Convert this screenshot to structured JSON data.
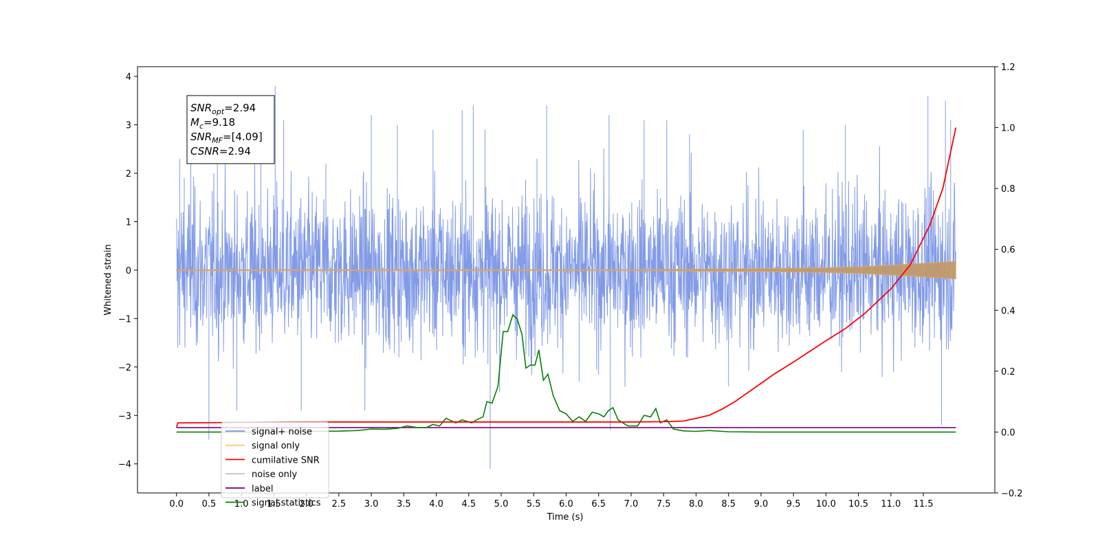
{
  "chart_data": {
    "type": "line",
    "title": "",
    "xlabel": "Time (s)",
    "ylabel": "Whitened strain",
    "xlim": [
      -0.6,
      12.6
    ],
    "ylim": [
      -4.6,
      4.2
    ],
    "y2lim": [
      -0.2,
      1.2
    ],
    "x_ticks": [
      "0.0",
      "0.5",
      "1.0",
      "1.5",
      "2.0",
      "2.5",
      "3.0",
      "3.5",
      "4.0",
      "4.5",
      "5.0",
      "5.5",
      "6.0",
      "6.5",
      "7.0",
      "7.5",
      "8.0",
      "8.5",
      "9.0",
      "9.5",
      "10.0",
      "10.5",
      "11.0",
      "11.5"
    ],
    "y_ticks": [
      "4",
      "3",
      "2",
      "1",
      "0",
      "−1",
      "−2",
      "−3",
      "−4"
    ],
    "y2_ticks": [
      "1.2",
      "1.0",
      "0.8",
      "0.6",
      "0.4",
      "0.2",
      "0.0",
      "−0.2"
    ],
    "grid": false,
    "legend_position": "lower-left",
    "info_box": {
      "lines": [
        {
          "main": "SNR",
          "sub": "opt",
          "rest": "=2.94"
        },
        {
          "main": "M",
          "sub": "c",
          "rest": "=9.18"
        },
        {
          "main": "SNR",
          "sub": "MF",
          "rest": "=[4.09]"
        },
        {
          "main": "CSNR",
          "sub": "",
          "rest": "=2.94"
        }
      ]
    },
    "series": [
      {
        "name": "signal+ noise",
        "color": "#7b96e6",
        "axis": "left",
        "description_values": {
          "x_range": [
            0.0,
            12.0
          ],
          "baseline": 0.0,
          "typical_amplitude": 1.5
        },
        "spikes": [
          [
            0.02,
            -1.6
          ],
          [
            0.05,
            2.3
          ],
          [
            0.12,
            1.9
          ],
          [
            0.22,
            2.4
          ],
          [
            0.5,
            -3.5
          ],
          [
            0.63,
            2.2
          ],
          [
            0.93,
            -2.9
          ],
          [
            1.3,
            2.7
          ],
          [
            1.52,
            3.8
          ],
          [
            1.65,
            3.1
          ],
          [
            1.92,
            -2.9
          ],
          [
            2.3,
            2.2
          ],
          [
            2.9,
            -2.9
          ],
          [
            3.0,
            3.2
          ],
          [
            3.4,
            3.0
          ],
          [
            3.95,
            2.9
          ],
          [
            4.4,
            3.3
          ],
          [
            4.57,
            3.4
          ],
          [
            4.75,
            2.9
          ],
          [
            4.83,
            -4.1
          ],
          [
            5.55,
            2.3
          ],
          [
            5.7,
            3.4
          ],
          [
            6.2,
            -2.3
          ],
          [
            6.66,
            3.2
          ],
          [
            6.68,
            -3.3
          ],
          [
            7.2,
            3.1
          ],
          [
            7.55,
            3.1
          ],
          [
            7.9,
            2.8
          ],
          [
            8.5,
            -2.4
          ],
          [
            9.65,
            2.9
          ],
          [
            10.3,
            3.0
          ],
          [
            11.57,
            3.6
          ],
          [
            11.78,
            -3.2
          ],
          [
            11.84,
            3.5
          ],
          [
            11.92,
            3.1
          ]
        ]
      },
      {
        "name": "signal only",
        "color": "#ffc966",
        "axis": "left",
        "envelope": [
          [
            0.0,
            0.01
          ],
          [
            7.0,
            0.01
          ],
          [
            8.0,
            0.02
          ],
          [
            9.0,
            0.03
          ],
          [
            10.0,
            0.05
          ],
          [
            10.5,
            0.07
          ],
          [
            11.0,
            0.1
          ],
          [
            11.5,
            0.14
          ],
          [
            12.0,
            0.18
          ]
        ]
      },
      {
        "name": "cumilative SNR",
        "color": "#ff0000",
        "axis": "right",
        "points": [
          [
            0.0,
            0.015
          ],
          [
            0.02,
            0.03
          ],
          [
            2.0,
            0.033
          ],
          [
            4.0,
            0.033
          ],
          [
            6.0,
            0.033
          ],
          [
            7.0,
            0.033
          ],
          [
            7.5,
            0.034
          ],
          [
            7.8,
            0.036
          ],
          [
            8.0,
            0.045
          ],
          [
            8.2,
            0.055
          ],
          [
            8.4,
            0.075
          ],
          [
            8.6,
            0.1
          ],
          [
            8.8,
            0.13
          ],
          [
            9.0,
            0.16
          ],
          [
            9.2,
            0.19
          ],
          [
            9.5,
            0.23
          ],
          [
            10.0,
            0.3
          ],
          [
            10.3,
            0.34
          ],
          [
            10.6,
            0.39
          ],
          [
            11.0,
            0.47
          ],
          [
            11.3,
            0.55
          ],
          [
            11.6,
            0.68
          ],
          [
            11.8,
            0.8
          ],
          [
            12.0,
            1.0
          ]
        ]
      },
      {
        "name": "noise only",
        "color": "#c0c0c0",
        "axis": "none"
      },
      {
        "name": "label",
        "color": "#800080",
        "axis": "left",
        "points": [
          [
            0.0,
            -3.25
          ],
          [
            12.0,
            -3.25
          ]
        ]
      },
      {
        "name": "signal statistics",
        "color": "#008000",
        "axis": "right",
        "points": [
          [
            0.0,
            0.0
          ],
          [
            0.5,
            0.0
          ],
          [
            1.0,
            0.0
          ],
          [
            1.5,
            0.0
          ],
          [
            2.0,
            0.002
          ],
          [
            2.5,
            0.003
          ],
          [
            2.8,
            0.005
          ],
          [
            3.0,
            0.01
          ],
          [
            3.2,
            0.009
          ],
          [
            3.4,
            0.012
          ],
          [
            3.55,
            0.02
          ],
          [
            3.7,
            0.015
          ],
          [
            3.85,
            0.015
          ],
          [
            3.95,
            0.025
          ],
          [
            4.05,
            0.02
          ],
          [
            4.15,
            0.045
          ],
          [
            4.3,
            0.03
          ],
          [
            4.4,
            0.04
          ],
          [
            4.55,
            0.03
          ],
          [
            4.62,
            0.04
          ],
          [
            4.72,
            0.05
          ],
          [
            4.78,
            0.1
          ],
          [
            4.86,
            0.095
          ],
          [
            4.95,
            0.15
          ],
          [
            5.03,
            0.33
          ],
          [
            5.1,
            0.33
          ],
          [
            5.18,
            0.385
          ],
          [
            5.25,
            0.37
          ],
          [
            5.32,
            0.32
          ],
          [
            5.38,
            0.21
          ],
          [
            5.45,
            0.22
          ],
          [
            5.52,
            0.22
          ],
          [
            5.58,
            0.27
          ],
          [
            5.65,
            0.17
          ],
          [
            5.72,
            0.19
          ],
          [
            5.8,
            0.12
          ],
          [
            5.9,
            0.07
          ],
          [
            6.0,
            0.06
          ],
          [
            6.1,
            0.035
          ],
          [
            6.2,
            0.05
          ],
          [
            6.3,
            0.035
          ],
          [
            6.4,
            0.065
          ],
          [
            6.5,
            0.06
          ],
          [
            6.58,
            0.05
          ],
          [
            6.65,
            0.07
          ],
          [
            6.72,
            0.08
          ],
          [
            6.8,
            0.04
          ],
          [
            6.95,
            0.02
          ],
          [
            7.1,
            0.02
          ],
          [
            7.2,
            0.055
          ],
          [
            7.3,
            0.05
          ],
          [
            7.38,
            0.077
          ],
          [
            7.45,
            0.03
          ],
          [
            7.55,
            0.04
          ],
          [
            7.65,
            0.01
          ],
          [
            7.8,
            0.004
          ],
          [
            8.0,
            0.002
          ],
          [
            8.2,
            0.005
          ],
          [
            8.5,
            0.001
          ],
          [
            9.0,
            0.0
          ],
          [
            10.0,
            0.0
          ],
          [
            11.0,
            0.0
          ],
          [
            12.0,
            0.0
          ]
        ]
      }
    ]
  }
}
